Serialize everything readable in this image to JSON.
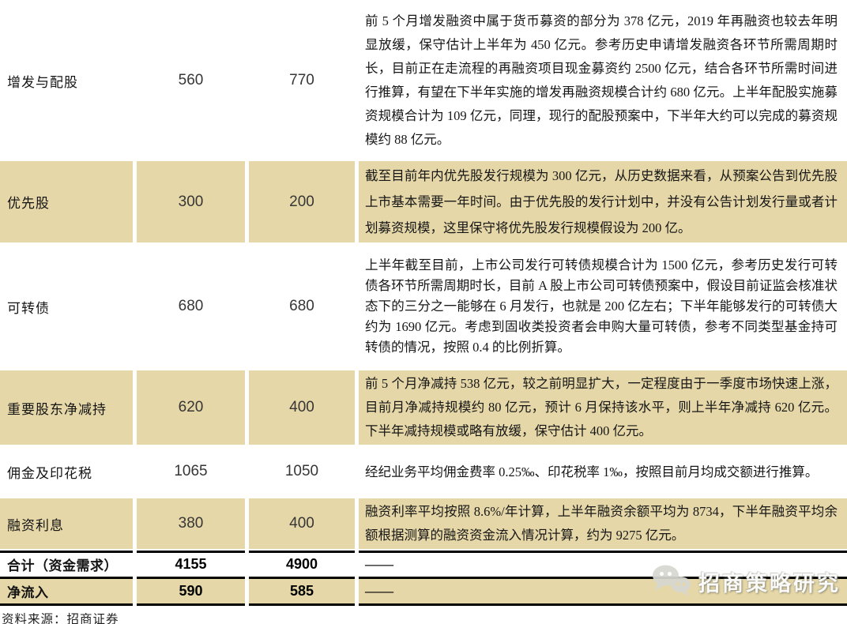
{
  "colors": {
    "row_shaded_bg": "#E5D7A7",
    "row_plain_bg": "#FFFFFF",
    "divider_black": "#000000",
    "watermark_text_color": "#FFFFFF",
    "watermark_icon_color": "#D8D8D2"
  },
  "table": {
    "rows": [
      {
        "label": "增发与配股",
        "value1": "560",
        "value2": "770",
        "note": "前 5 个月增发融资中属于货币募资的部分为 378 亿元，2019 年再融资也较去年明显放缓，保守估计上半年为 450 亿元。参考历史申请增发融资各环节所需周期时长，目前正在走流程的再融资项目现金募资约 2500 亿元，结合各环节所需时间进行推算，有望在下半年实施的增发再融资规模合计约 680 亿元。上半年配股实施募资规模合计为 109 亿元，同理，现行的配股预案中，下半年大约可以完成的募资规模约 88 亿元。",
        "shaded": false,
        "bold": false,
        "border_top": false,
        "border_bottom": false
      },
      {
        "label": "优先股",
        "value1": "300",
        "value2": "200",
        "note": "截至目前年内优先股发行规模为 300 亿元，从历史数据来看，从预案公告到优先股上市基本需要一年时间。由于优先股的发行计划中，并没有公告计划发行量或者计划募资规模，这里保守将优先股发行规模假设为 200 亿。",
        "shaded": true,
        "bold": false,
        "border_top": false,
        "border_bottom": false
      },
      {
        "label": "可转债",
        "value1": "680",
        "value2": "680",
        "note": "上半年截至目前，上市公司发行可转债规模合计为 1500 亿元，参考历史发行可转债各环节所需周期时长，目前 A 股上市公司可转债预案中，假设目前证监会核准状态下的三分之一能够在 6 月发行，也就是 200 亿左右；下半年能够发行的可转债大约为 1690 亿元。考虑到固收类投资者会申购大量可转债，参考不同类型基金持可转债的情况，按照 0.4 的比例折算。",
        "shaded": false,
        "bold": false,
        "border_top": false,
        "border_bottom": false
      },
      {
        "label": "重要股东净减持",
        "value1": "620",
        "value2": "400",
        "note": "前 5 个月净减持 538 亿元，较之前明显扩大，一定程度由于一季度市场快速上涨，目前月净减持规模约 80 亿元，预计 6 月保持该水平，则上半年净减持 620 亿元。下半年减持规模或略有放缓，保守估计 400 亿元。",
        "shaded": true,
        "bold": false,
        "border_top": false,
        "border_bottom": false
      },
      {
        "label": "佣金及印花税",
        "value1": "1065",
        "value2": "1050",
        "note": "经纪业务平均佣金费率 0.25‰、印花税率 1‰，按照目前月均成交额进行推算。",
        "shaded": false,
        "bold": false,
        "border_top": false,
        "border_bottom": false
      },
      {
        "label": "融资利息",
        "value1": "380",
        "value2": "400",
        "note": "融资利率平均按照 8.6%/年计算，上半年融资余额平均为 8734，下半年融资平均余额根据测算的融资资金流入情况计算，约为 9275 亿元。",
        "shaded": true,
        "bold": false,
        "border_top": false,
        "border_bottom": false
      },
      {
        "label": "合计（资金需求）",
        "value1": "4155",
        "value2": "4900",
        "note": "——",
        "shaded": false,
        "bold": true,
        "border_top": true,
        "border_bottom": false
      },
      {
        "label": "净流入",
        "value1": "590",
        "value2": "585",
        "note": "——",
        "shaded": true,
        "bold": true,
        "border_top": true,
        "border_bottom": true
      }
    ]
  },
  "source_note": "资料来源：招商证券",
  "watermark": {
    "text": "招商策略研究",
    "icon": "wechat-logo-icon"
  }
}
